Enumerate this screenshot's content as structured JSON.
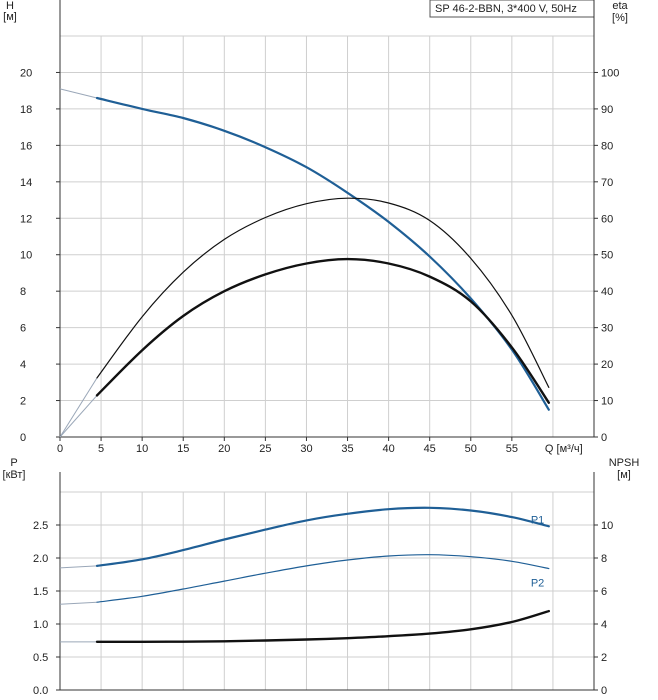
{
  "title": "SP 46-2-BBN, 3*400 V, 50Hz",
  "colors": {
    "blue": "#1f5f96",
    "black": "#111111",
    "grid": "#cfcfcf"
  },
  "chart_data": [
    {
      "type": "line",
      "name": "upper",
      "xlabel": "Q [м³/ч]",
      "ylabel_left": [
        "H",
        "[м]"
      ],
      "ylabel_right": [
        "eta",
        "[%]"
      ],
      "xlim": [
        0,
        65
      ],
      "ylim_left": [
        0,
        22
      ],
      "ylim_right": [
        0,
        110
      ],
      "x_ticks": [
        0,
        5,
        10,
        15,
        20,
        25,
        30,
        35,
        40,
        45,
        50,
        55
      ],
      "y_ticks_left": [
        0,
        2,
        4,
        6,
        8,
        10,
        12,
        14,
        16,
        18,
        20
      ],
      "y_ticks_right": [
        0,
        10,
        20,
        30,
        40,
        50,
        60,
        70,
        80,
        90,
        100
      ],
      "grid": true,
      "series": [
        {
          "key": "H",
          "axis": "left",
          "color": "#1f5f96",
          "width": 2.2,
          "x": [
            4.5,
            10,
            15,
            20,
            25,
            30,
            35,
            40,
            45,
            50,
            55,
            59.5
          ],
          "y": [
            18.6,
            18.0,
            17.5,
            16.8,
            15.9,
            14.8,
            13.4,
            11.8,
            9.9,
            7.6,
            4.8,
            1.5
          ]
        },
        {
          "key": "eta_thin",
          "axis": "right",
          "color": "#111111",
          "width": 1.2,
          "x": [
            4.5,
            10,
            15,
            20,
            25,
            30,
            35,
            40,
            45,
            50,
            55,
            59.5
          ],
          "y": [
            16.2,
            33.0,
            45.2,
            54.2,
            60.2,
            64.0,
            65.5,
            64.2,
            59.4,
            49.0,
            33.4,
            13.6
          ]
        },
        {
          "key": "eta_thick",
          "axis": "right",
          "color": "#111111",
          "width": 2.4,
          "x": [
            4.5,
            10,
            15,
            20,
            25,
            30,
            35,
            40,
            45,
            50,
            55,
            59.5
          ],
          "y": [
            11.4,
            23.8,
            33.2,
            40.0,
            44.6,
            47.6,
            48.8,
            47.6,
            44.0,
            37.2,
            24.6,
            9.4
          ]
        }
      ],
      "extrapolation": [
        {
          "key": "H_extrap",
          "axis": "left",
          "x": [
            0,
            4.5
          ],
          "y": [
            19.1,
            18.6
          ]
        },
        {
          "key": "eta_thin_extrap",
          "axis": "right",
          "x": [
            0,
            4.5
          ],
          "y": [
            0,
            16.2
          ]
        },
        {
          "key": "eta_thick_extrap",
          "axis": "right",
          "x": [
            0,
            4.5
          ],
          "y": [
            0,
            11.4
          ]
        }
      ]
    },
    {
      "type": "line",
      "name": "lower",
      "ylabel_left": [
        "P",
        "[кВт]"
      ],
      "ylabel_right": [
        "NPSH",
        "[м]"
      ],
      "xlim": [
        0,
        65
      ],
      "ylim_left": [
        0,
        3.0
      ],
      "ylim_right": [
        0,
        12
      ],
      "y_ticks_left": [
        "0.0",
        "0.5",
        "1.0",
        "1.5",
        "2.0",
        "2.5"
      ],
      "y_ticks_left_values": [
        0,
        0.5,
        1.0,
        1.5,
        2.0,
        2.5
      ],
      "y_ticks_right": [
        0,
        2,
        4,
        6,
        8,
        10
      ],
      "grid": true,
      "series": [
        {
          "key": "P1",
          "name": "P1",
          "axis": "left",
          "color": "#1f5f96",
          "width": 2.2,
          "x": [
            4.5,
            10,
            15,
            20,
            25,
            30,
            35,
            40,
            45,
            50,
            55,
            59.5
          ],
          "y": [
            1.88,
            1.98,
            2.12,
            2.28,
            2.43,
            2.57,
            2.67,
            2.74,
            2.76,
            2.72,
            2.62,
            2.48
          ]
        },
        {
          "key": "P2",
          "name": "P2",
          "axis": "left",
          "color": "#1f5f96",
          "width": 1.2,
          "x": [
            4.5,
            10,
            15,
            20,
            25,
            30,
            35,
            40,
            45,
            50,
            55,
            59.5
          ],
          "y": [
            1.33,
            1.42,
            1.53,
            1.65,
            1.77,
            1.88,
            1.97,
            2.03,
            2.05,
            2.02,
            1.95,
            1.84
          ]
        },
        {
          "key": "NPSH",
          "axis": "right",
          "color": "#111111",
          "width": 2.4,
          "x": [
            4.5,
            10,
            15,
            20,
            25,
            30,
            35,
            40,
            45,
            50,
            55,
            59.5
          ],
          "y": [
            2.92,
            2.92,
            2.93,
            2.95,
            3.0,
            3.06,
            3.14,
            3.26,
            3.42,
            3.68,
            4.12,
            4.78
          ]
        }
      ],
      "extrapolation": [
        {
          "key": "P1_extrap",
          "axis": "left",
          "x": [
            0,
            4.5
          ],
          "y": [
            1.85,
            1.88
          ]
        },
        {
          "key": "P2_extrap",
          "axis": "left",
          "x": [
            0,
            4.5
          ],
          "y": [
            1.3,
            1.33
          ]
        },
        {
          "key": "NPSH_extrap",
          "axis": "right",
          "x": [
            0,
            4.5
          ],
          "y": [
            2.92,
            2.92
          ]
        }
      ]
    }
  ]
}
